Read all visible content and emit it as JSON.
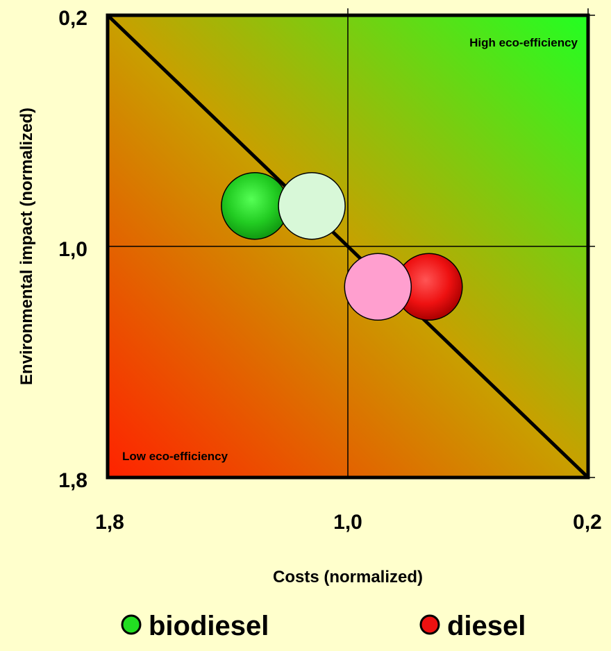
{
  "chart_data": {
    "type": "scatter",
    "title": "",
    "xlabel": "Costs (normalized)",
    "ylabel": "Environmental impact (normalized)",
    "xlim": [
      1.8,
      0.2
    ],
    "ylim": [
      1.8,
      0.2
    ],
    "x_ticks": [
      "1,8",
      "1,0",
      "0,2"
    ],
    "y_ticks": [
      "0,2",
      "1,0",
      "1,8"
    ],
    "x_tick_values": [
      1.8,
      1.0,
      0.2
    ],
    "y_tick_values": [
      0.2,
      1.0,
      1.8
    ],
    "grid_center": {
      "x": 1.0,
      "y": 1.0
    },
    "diagonal": true,
    "annotations": {
      "high": "High eco-efficiency",
      "low": "Low eco-efficiency"
    },
    "series": [
      {
        "name": "biodiesel",
        "color": "#22dd22",
        "points": [
          {
            "x": 1.31,
            "y": 0.86,
            "color": "#22dd22"
          },
          {
            "x": 1.12,
            "y": 0.86,
            "color": "#d8f8d8"
          }
        ]
      },
      {
        "name": "diesel",
        "color": "#ee1111",
        "points": [
          {
            "x": 0.73,
            "y": 1.14,
            "color": "#ee1111"
          },
          {
            "x": 0.9,
            "y": 1.14,
            "color": "#ff9fcf"
          }
        ]
      }
    ],
    "legend": {
      "placement": "bottom"
    }
  }
}
